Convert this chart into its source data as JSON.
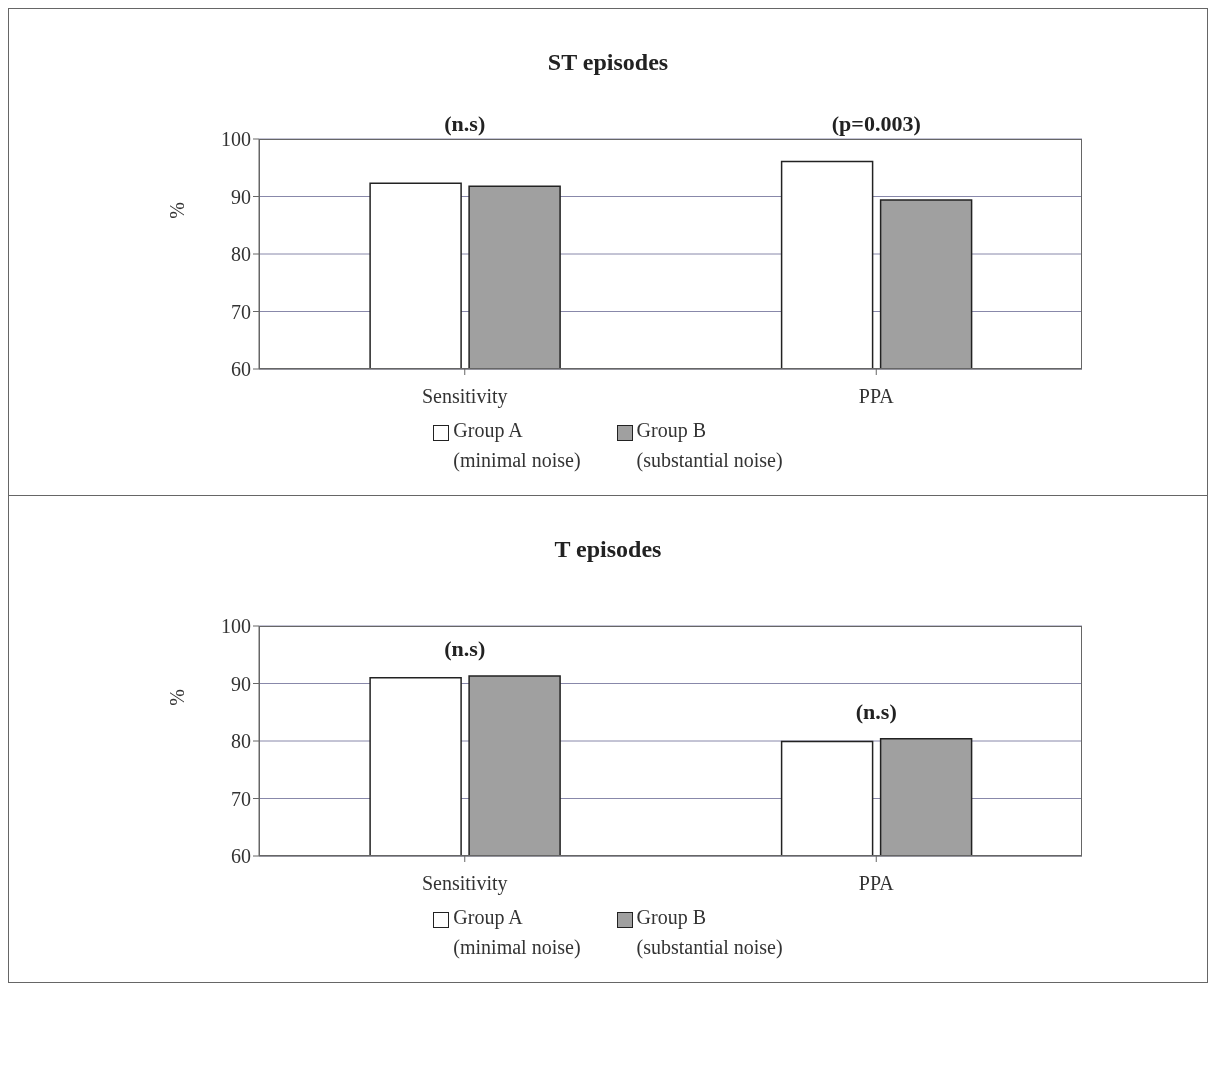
{
  "chart_data": [
    {
      "type": "bar",
      "title": "ST episodes",
      "ylabel": "%",
      "categories": [
        "Sensitivity",
        "PPA"
      ],
      "series": [
        {
          "name": "Group A\n(minimal noise)",
          "color": "#ffffff",
          "values": [
            92.3,
            96.1
          ]
        },
        {
          "name": "Group B\n(substantial noise)",
          "color": "#a0a0a0",
          "values": [
            91.8,
            89.4
          ]
        }
      ],
      "ylim": [
        60,
        100
      ],
      "yticks": [
        60,
        70,
        80,
        90,
        100
      ],
      "grid": "y",
      "legend": "bottom",
      "annotations": [
        "(n.s)",
        "(p=0.003)"
      ]
    },
    {
      "type": "bar",
      "title": "T episodes",
      "ylabel": "%",
      "categories": [
        "Sensitivity",
        "PPA"
      ],
      "series": [
        {
          "name": "Group A\n(minimal noise)",
          "color": "#ffffff",
          "values": [
            91.0,
            79.9
          ]
        },
        {
          "name": "Group B\n(substantial noise)",
          "color": "#a0a0a0",
          "values": [
            91.3,
            80.4
          ]
        }
      ],
      "ylim": [
        60,
        100
      ],
      "yticks": [
        60,
        70,
        80,
        90,
        100
      ],
      "grid": "y",
      "legend": "bottom",
      "annotations": [
        "(n.s)",
        "(n.s)"
      ]
    }
  ]
}
